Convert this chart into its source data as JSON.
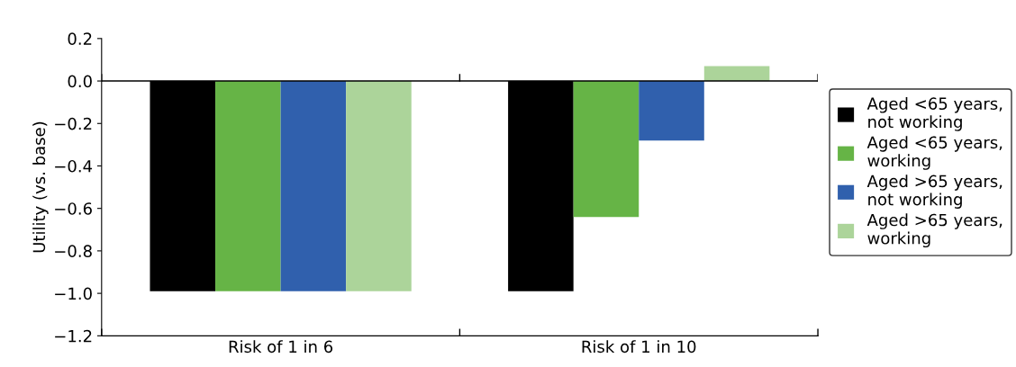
{
  "chart_data": {
    "type": "bar",
    "ylabel": "Utility (vs. base)",
    "categories": [
      "Risk of 1 in 6",
      "Risk of 1 in 10"
    ],
    "series": [
      {
        "name": "Aged <65 years,\nnot working",
        "color": "#000000",
        "values": [
          -0.99,
          -0.99
        ]
      },
      {
        "name": "Aged <65 years,\nworking",
        "color": "#66b446",
        "values": [
          -0.99,
          -0.64
        ]
      },
      {
        "name": "Aged >65 years,\nnot working",
        "color": "#3060ad",
        "values": [
          -0.99,
          -0.28
        ]
      },
      {
        "name": "Aged >65 years,\nworking",
        "color": "#acd49a",
        "values": [
          -0.99,
          0.07
        ]
      }
    ],
    "ylim": [
      -1.2,
      0.2
    ],
    "yticks": [
      0.2,
      {
        "value": 0.0,
        "label": "0.0"
      },
      {
        "value": -0.2,
        "label": "−0.2"
      },
      {
        "value": -0.4,
        "label": "−0.4"
      },
      {
        "value": -0.6,
        "label": "−0.6"
      },
      {
        "value": -0.8,
        "label": "−0.8"
      },
      {
        "value": -1.0,
        "label": "−1.0"
      },
      {
        "value": -1.2,
        "label": "−1.2"
      }
    ],
    "ref_lines": [
      {
        "axis": "y",
        "value": 0,
        "color": "#000000"
      }
    ],
    "grid": false,
    "legend": "right"
  }
}
